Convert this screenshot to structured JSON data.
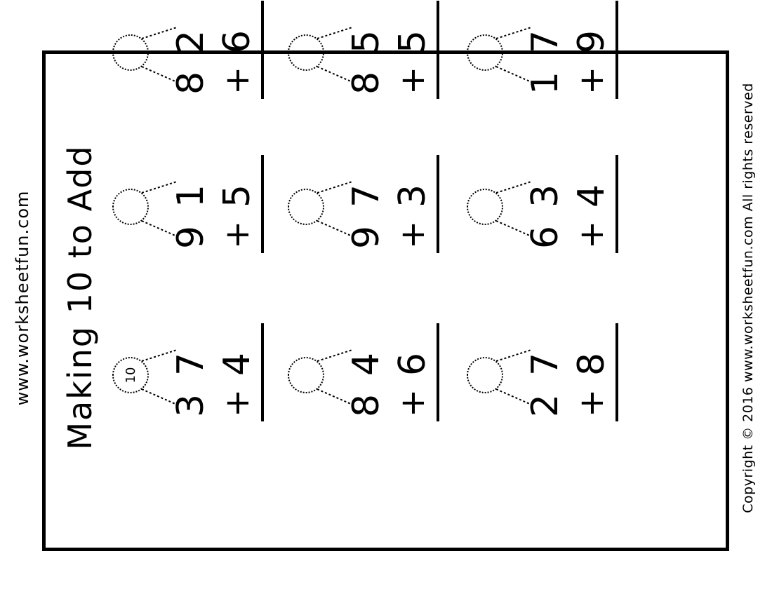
{
  "header": {
    "website": "www.worksheetfun.com"
  },
  "worksheet": {
    "title": "Making 10 to Add"
  },
  "footer": {
    "copyright": "Copyright © 2016 www.worksheetfun.com All rights reserved"
  },
  "problems": [
    {
      "n1": "3",
      "n2": "7",
      "n3": "4",
      "plus": "+",
      "bubble": "10"
    },
    {
      "n1": "9",
      "n2": "1",
      "n3": "5",
      "plus": "+",
      "bubble": ""
    },
    {
      "n1": "8",
      "n2": "2",
      "n3": "6",
      "plus": "+",
      "bubble": ""
    },
    {
      "n1": "8",
      "n2": "4",
      "n3": "6",
      "plus": "+",
      "bubble": ""
    },
    {
      "n1": "9",
      "n2": "7",
      "n3": "3",
      "plus": "+",
      "bubble": ""
    },
    {
      "n1": "8",
      "n2": "5",
      "n3": "5",
      "plus": "+",
      "bubble": ""
    },
    {
      "n1": "2",
      "n2": "7",
      "n3": "8",
      "plus": "+",
      "bubble": ""
    },
    {
      "n1": "6",
      "n2": "3",
      "n3": "4",
      "plus": "+",
      "bubble": ""
    },
    {
      "n1": "1",
      "n2": "7",
      "n3": "9",
      "plus": "+",
      "bubble": ""
    }
  ]
}
